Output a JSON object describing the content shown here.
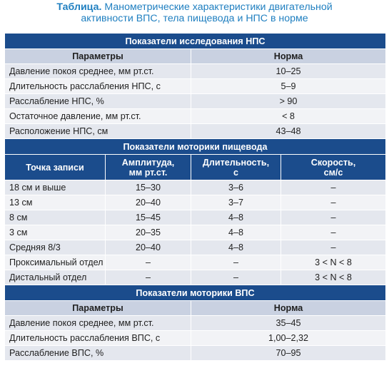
{
  "caption": {
    "label": "Таблица.",
    "line1": "Манометрические характеристики двигательной",
    "line2": "активности ВПС, тела пищевода и НПС в норме"
  },
  "npc": {
    "section_title": "Показатели исследования НПС",
    "col_param": "Параметры",
    "col_norm": "Норма",
    "rows": [
      {
        "name": "Давление покоя среднее, мм рт.ст.",
        "value": "10–25"
      },
      {
        "name": "Длительность расслабления НПС, с",
        "value": "5–9"
      },
      {
        "name": "Расслабление НПС, %",
        "value": "> 90"
      },
      {
        "name": "Остаточное давление, мм рт.ст.",
        "value": "< 8"
      },
      {
        "name": "Расположение НПС, см",
        "value": "43–48"
      }
    ]
  },
  "motility": {
    "section_title": "Показатели моторики пищевода",
    "col_point": "Точка записи",
    "col_amp_1": "Амплитуда,",
    "col_amp_2": "мм рт.ст.",
    "col_dur_1": "Длительность,",
    "col_dur_2": "с",
    "col_speed_1": "Скорость,",
    "col_speed_2": "см/с",
    "rows": [
      {
        "point": "18 см и выше",
        "amp": "15–30",
        "dur": "3–6",
        "speed": "–"
      },
      {
        "point": "13 см",
        "amp": "20–40",
        "dur": "3–7",
        "speed": "–"
      },
      {
        "point": "8 см",
        "amp": "15–45",
        "dur": "4–8",
        "speed": "–"
      },
      {
        "point": "3 см",
        "amp": "20–35",
        "dur": "4–8",
        "speed": "–"
      },
      {
        "point": "Средняя 8/3",
        "amp": "20–40",
        "dur": "4–8",
        "speed": "–"
      },
      {
        "point": "Проксимальный отдел",
        "amp": "–",
        "dur": "–",
        "speed": "3 < N < 8"
      },
      {
        "point": "Дистальный отдел",
        "amp": "–",
        "dur": "–",
        "speed": "3 < N < 8"
      }
    ]
  },
  "vps": {
    "section_title": "Показатели моторики ВПС",
    "col_param": "Параметры",
    "col_norm": "Норма",
    "rows": [
      {
        "name": "Давление покоя среднее, мм рт.ст.",
        "value": "35–45"
      },
      {
        "name": "Длительность расслабления ВПС, с",
        "value": "1,00–2,32"
      },
      {
        "name": "Расслабление ВПС, %",
        "value": "70–95"
      }
    ]
  },
  "colors": {
    "caption": "#1f7fc0",
    "section_bg": "#1b4c8c",
    "header_bg": "#c9d1e1",
    "row_odd": "#e4e7ee",
    "row_even": "#f2f3f6"
  }
}
